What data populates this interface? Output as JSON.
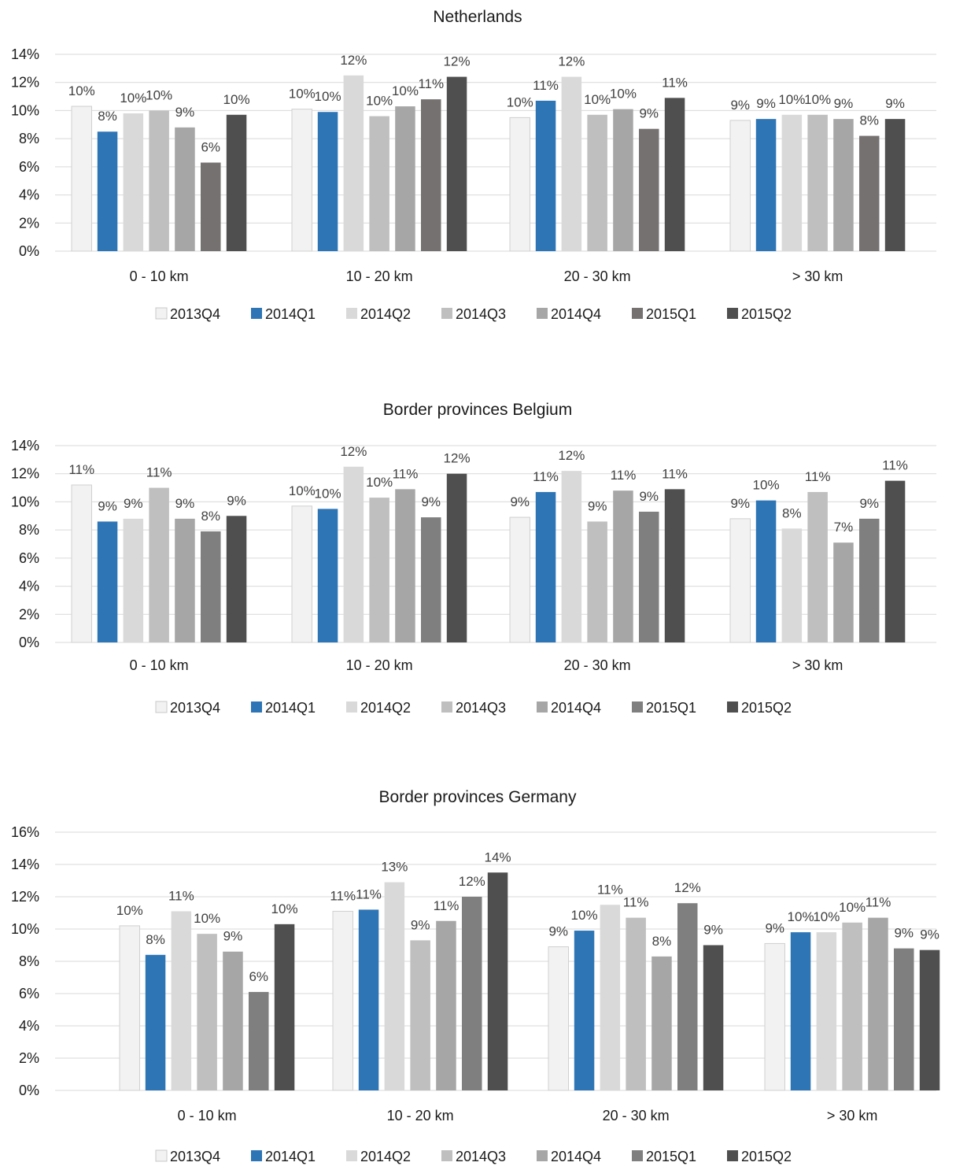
{
  "legend_labels": [
    "2013Q4",
    "2014Q1",
    "2014Q2",
    "2014Q3",
    "2014Q4",
    "2015Q1",
    "2015Q2"
  ],
  "chart_data": [
    {
      "type": "bar",
      "title": "Netherlands",
      "categories": [
        "0 - 10 km",
        "10 - 20 km",
        "20 - 30 km",
        "> 30 km"
      ],
      "ylim": [
        0,
        14
      ],
      "yticks": [
        "0%",
        "2%",
        "4%",
        "6%",
        "8%",
        "10%",
        "12%",
        "14%"
      ],
      "series": [
        {
          "name": "2013Q4",
          "color": "#f2f2f2",
          "values": [
            10.3,
            10.1,
            9.5,
            9.3
          ],
          "labels": [
            "10%",
            "10%",
            "10%",
            "9%"
          ]
        },
        {
          "name": "2014Q1",
          "color": "#2e75b6",
          "values": [
            8.5,
            9.9,
            10.7,
            9.4
          ],
          "labels": [
            "8%",
            "10%",
            "11%",
            "9%"
          ]
        },
        {
          "name": "2014Q2",
          "color": "#d9d9d9",
          "values": [
            9.8,
            12.5,
            12.4,
            9.7
          ],
          "labels": [
            "10%",
            "12%",
            "12%",
            "10%"
          ]
        },
        {
          "name": "2014Q3",
          "color": "#bfbfbf",
          "values": [
            10.0,
            9.6,
            9.7,
            9.7
          ],
          "labels": [
            "10%",
            "10%",
            "10%",
            "10%"
          ]
        },
        {
          "name": "2014Q4",
          "color": "#a6a6a6",
          "values": [
            8.8,
            10.3,
            10.1,
            9.4
          ],
          "labels": [
            "9%",
            "10%",
            "10%",
            "9%"
          ]
        },
        {
          "name": "2015Q1",
          "color": "#767171",
          "values": [
            6.3,
            10.8,
            8.7,
            8.2
          ],
          "labels": [
            "6%",
            "11%",
            "9%",
            "8%"
          ]
        },
        {
          "name": "2015Q2",
          "color": "#4f4f4f",
          "values": [
            9.7,
            12.4,
            10.9,
            9.4
          ],
          "labels": [
            "10%",
            "12%",
            "11%",
            "9%"
          ]
        }
      ],
      "legend": "bottom",
      "grid": true
    },
    {
      "type": "bar",
      "title": "Border provinces Belgium",
      "categories": [
        "0 - 10 km",
        "10 - 20 km",
        "20 - 30 km",
        "> 30 km"
      ],
      "ylim": [
        0,
        14
      ],
      "yticks": [
        "0%",
        "2%",
        "4%",
        "6%",
        "8%",
        "10%",
        "12%",
        "14%"
      ],
      "series": [
        {
          "name": "2013Q4",
          "color": "#f2f2f2",
          "values": [
            11.2,
            9.7,
            8.9,
            8.8
          ],
          "labels": [
            "11%",
            "10%",
            "9%",
            "9%"
          ]
        },
        {
          "name": "2014Q1",
          "color": "#2e75b6",
          "values": [
            8.6,
            9.5,
            10.7,
            10.1
          ],
          "labels": [
            "9%",
            "10%",
            "11%",
            "10%"
          ]
        },
        {
          "name": "2014Q2",
          "color": "#d9d9d9",
          "values": [
            8.8,
            12.5,
            12.2,
            8.1
          ],
          "labels": [
            "9%",
            "12%",
            "12%",
            "8%"
          ]
        },
        {
          "name": "2014Q3",
          "color": "#bfbfbf",
          "values": [
            11.0,
            10.3,
            8.6,
            10.7
          ],
          "labels": [
            "11%",
            "10%",
            "9%",
            "11%"
          ]
        },
        {
          "name": "2014Q4",
          "color": "#a6a6a6",
          "values": [
            8.8,
            10.9,
            10.8,
            7.1
          ],
          "labels": [
            "9%",
            "11%",
            "11%",
            "7%"
          ]
        },
        {
          "name": "2015Q1",
          "color": "#7f7f7f",
          "values": [
            7.9,
            8.9,
            9.3,
            8.8
          ],
          "labels": [
            "8%",
            "9%",
            "9%",
            "9%"
          ]
        },
        {
          "name": "2015Q2",
          "color": "#4f4f4f",
          "values": [
            9.0,
            12.0,
            10.9,
            11.5
          ],
          "labels": [
            "9%",
            "12%",
            "11%",
            "11%"
          ]
        }
      ],
      "legend": "bottom",
      "grid": true
    },
    {
      "type": "bar",
      "title": "Border provinces Germany",
      "categories": [
        "0 - 10 km",
        "10 - 20 km",
        "20 - 30 km",
        "> 30 km"
      ],
      "ylim": [
        0,
        16
      ],
      "yticks": [
        "0%",
        "2%",
        "4%",
        "6%",
        "8%",
        "10%",
        "12%",
        "14%",
        "16%"
      ],
      "series": [
        {
          "name": "2013Q4",
          "color": "#f2f2f2",
          "values": [
            10.2,
            11.1,
            8.9,
            9.1
          ],
          "labels": [
            "10%",
            "11%",
            "9%",
            "9%"
          ]
        },
        {
          "name": "2014Q1",
          "color": "#2e75b6",
          "values": [
            8.4,
            11.2,
            9.9,
            9.8
          ],
          "labels": [
            "8%",
            "11%",
            "10%",
            "10%"
          ]
        },
        {
          "name": "2014Q2",
          "color": "#d9d9d9",
          "values": [
            11.1,
            12.9,
            11.5,
            9.8
          ],
          "labels": [
            "11%",
            "13%",
            "11%",
            "10%"
          ]
        },
        {
          "name": "2014Q3",
          "color": "#bfbfbf",
          "values": [
            9.7,
            9.3,
            10.7,
            10.4
          ],
          "labels": [
            "10%",
            "9%",
            "11%",
            "10%"
          ]
        },
        {
          "name": "2014Q4",
          "color": "#a6a6a6",
          "values": [
            8.6,
            10.5,
            8.3,
            10.7
          ],
          "labels": [
            "9%",
            "11%",
            "8%",
            "11%"
          ]
        },
        {
          "name": "2015Q1",
          "color": "#7f7f7f",
          "values": [
            6.1,
            12.0,
            11.6,
            8.8
          ],
          "labels": [
            "6%",
            "12%",
            "12%",
            "9%"
          ]
        },
        {
          "name": "2015Q2",
          "color": "#4f4f4f",
          "values": [
            10.3,
            13.5,
            9.0,
            8.7
          ],
          "labels": [
            "10%",
            "14%",
            "9%",
            "9%"
          ]
        }
      ],
      "legend": "bottom",
      "grid": true
    }
  ]
}
